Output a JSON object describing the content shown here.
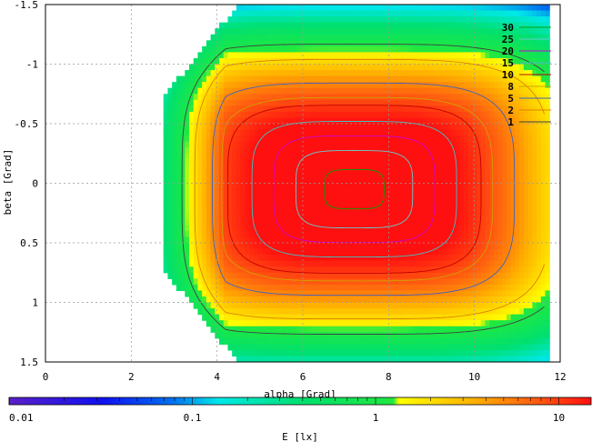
{
  "chart_data": {
    "type": "heatmap",
    "title": "",
    "xlabel": "alpha [Grad]",
    "ylabel": "beta [Grad]",
    "colorbar_label": "E [lx]",
    "xlim": [
      0,
      12
    ],
    "ylim": [
      -1.5,
      1.5
    ],
    "y_reversed": true,
    "grid": true,
    "x_ticks": [
      "0",
      "2",
      "4",
      "6",
      "8",
      "10",
      "12"
    ],
    "y_ticks": [
      "-1.5",
      "-1",
      "-0.5",
      "0",
      "0.5",
      "1",
      "1.5"
    ],
    "x_tick_values": [
      0,
      2,
      4,
      6,
      8,
      10,
      12
    ],
    "y_tick_values": [
      -1.5,
      -1,
      -0.5,
      0,
      0.5,
      1,
      1.5
    ],
    "colorbar": {
      "scale": "log",
      "range": [
        0.01,
        15
      ],
      "tick_labels": [
        "0.01",
        "0.1",
        "1",
        "10"
      ],
      "tick_values": [
        0.01,
        0.1,
        1,
        10
      ]
    },
    "legend": {
      "placement": "top-right",
      "entries": [
        {
          "label": "30",
          "color": "#00a000"
        },
        {
          "label": "25",
          "color": "#66cccc"
        },
        {
          "label": "20",
          "color": "#cc00cc"
        },
        {
          "label": "15",
          "color": "#40c0c0"
        },
        {
          "label": "10",
          "color": "#c00000"
        },
        {
          "label": "8",
          "color": "#d0a000"
        },
        {
          "label": "5",
          "color": "#4060c0"
        },
        {
          "label": "2",
          "color": "#e08000"
        },
        {
          "label": "1",
          "color": "#404040"
        }
      ]
    },
    "contour_levels": [
      1,
      2,
      5,
      8,
      10,
      15,
      20,
      25,
      30
    ],
    "alpha_extent": [
      2.75,
      11.7
    ],
    "beta_extent": [
      -1.5,
      1.5
    ],
    "peak": {
      "alpha": 7.2,
      "beta": 0.05,
      "value": 32
    }
  }
}
